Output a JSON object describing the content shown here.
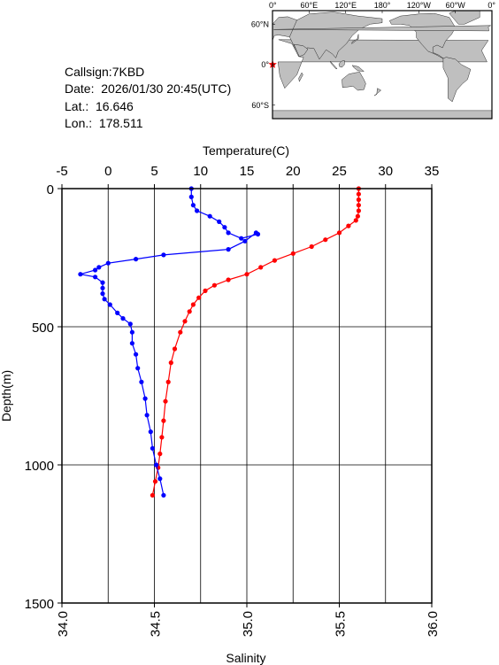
{
  "station": {
    "callsign": "Callsign:7KBD",
    "date": "Date:  2026/01/30 20:45(UTC)",
    "lat": "Lat.:  16.646",
    "lon": "Lon.:  178.511"
  },
  "colors": {
    "temperature": "#ff0000",
    "salinity": "#0000ff",
    "land": "#bfbfbf",
    "ocean": "#ffffff",
    "marker": "#ff0000"
  },
  "map": {
    "top_labels": [
      "0°",
      "60°E",
      "120°E",
      "180°",
      "120°W",
      "60°W",
      "0°"
    ],
    "right_labels": [
      "60°N",
      "0°",
      "60°S"
    ],
    "marker_icon": "star-icon"
  },
  "chart_data": {
    "type": "line",
    "grid": true,
    "y": {
      "label": "Depth(m)",
      "range": [
        0,
        1500
      ],
      "ticks": [
        0,
        500,
        1000,
        1500
      ],
      "inverted": true
    },
    "x_top": {
      "label": "Temperature(C)",
      "range": [
        -5,
        35
      ],
      "ticks": [
        -5,
        0,
        5,
        10,
        15,
        20,
        25,
        30,
        35
      ]
    },
    "x_bottom": {
      "label": "Salinity",
      "range": [
        34.0,
        36.0
      ],
      "ticks": [
        "34.0",
        "34.5",
        "35.0",
        "35.5",
        "36.0"
      ]
    },
    "series": [
      {
        "axis": "temperature",
        "points": [
          [
            27.1,
            0
          ],
          [
            27.1,
            20
          ],
          [
            27.1,
            40
          ],
          [
            27.1,
            60
          ],
          [
            27.1,
            80
          ],
          [
            27.0,
            100
          ],
          [
            26.8,
            115
          ],
          [
            26.0,
            135
          ],
          [
            25.0,
            160
          ],
          [
            23.5,
            185
          ],
          [
            22.0,
            210
          ],
          [
            20.0,
            235
          ],
          [
            18.0,
            260
          ],
          [
            16.5,
            285
          ],
          [
            15.0,
            310
          ],
          [
            13.0,
            330
          ],
          [
            11.5,
            350
          ],
          [
            10.5,
            370
          ],
          [
            9.8,
            395
          ],
          [
            9.2,
            420
          ],
          [
            8.8,
            445
          ],
          [
            8.3,
            480
          ],
          [
            7.8,
            520
          ],
          [
            7.2,
            580
          ],
          [
            6.8,
            630
          ],
          [
            6.5,
            700
          ],
          [
            6.2,
            770
          ],
          [
            6.0,
            840
          ],
          [
            5.8,
            900
          ],
          [
            5.6,
            960
          ],
          [
            5.4,
            1010
          ],
          [
            5.1,
            1060
          ],
          [
            4.8,
            1110
          ]
        ]
      },
      {
        "axis": "salinity",
        "points": [
          [
            34.7,
            0
          ],
          [
            34.7,
            30
          ],
          [
            34.71,
            60
          ],
          [
            34.73,
            80
          ],
          [
            34.8,
            100
          ],
          [
            34.85,
            120
          ],
          [
            34.88,
            140
          ],
          [
            34.9,
            160
          ],
          [
            34.97,
            180
          ],
          [
            35.06,
            165
          ],
          [
            35.05,
            160
          ],
          [
            34.99,
            190
          ],
          [
            34.9,
            220
          ],
          [
            34.55,
            240
          ],
          [
            34.4,
            255
          ],
          [
            34.25,
            270
          ],
          [
            34.2,
            285
          ],
          [
            34.18,
            295
          ],
          [
            34.1,
            310
          ],
          [
            34.18,
            320
          ],
          [
            34.22,
            340
          ],
          [
            34.22,
            360
          ],
          [
            34.22,
            380
          ],
          [
            34.23,
            400
          ],
          [
            34.26,
            420
          ],
          [
            34.3,
            450
          ],
          [
            34.33,
            470
          ],
          [
            34.37,
            490
          ],
          [
            34.38,
            520
          ],
          [
            34.38,
            560
          ],
          [
            34.4,
            600
          ],
          [
            34.41,
            650
          ],
          [
            34.43,
            700
          ],
          [
            34.45,
            760
          ],
          [
            34.46,
            820
          ],
          [
            34.48,
            880
          ],
          [
            34.49,
            940
          ],
          [
            34.51,
            1000
          ],
          [
            34.53,
            1050
          ],
          [
            34.55,
            1110
          ]
        ]
      }
    ]
  }
}
